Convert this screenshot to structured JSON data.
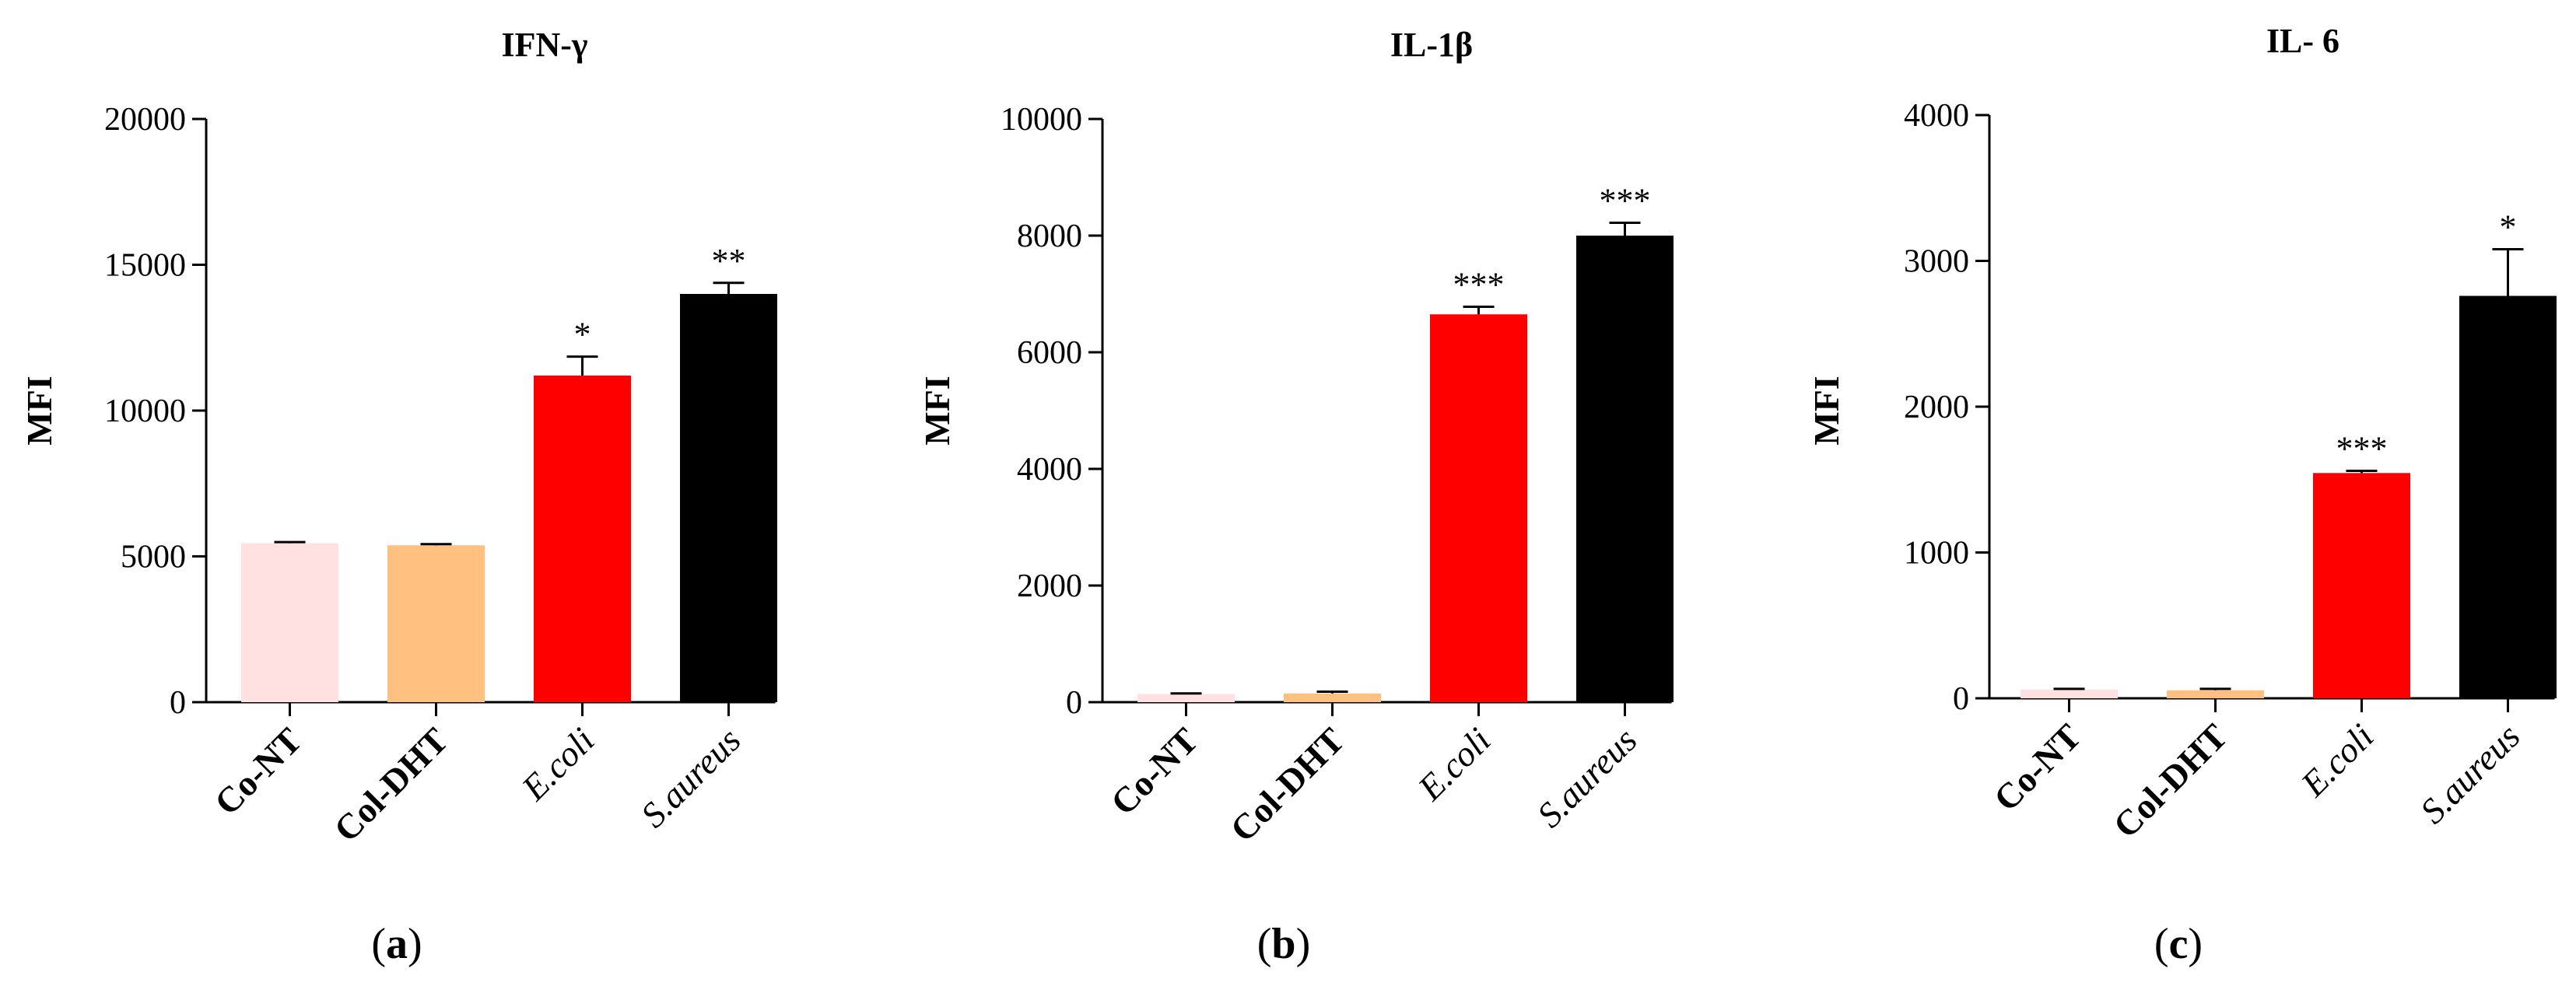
{
  "chart_data": [
    {
      "type": "bar",
      "panel_label": "a",
      "title": "IFN-γ",
      "ylabel": "MFI",
      "ylim": [
        0,
        20000
      ],
      "yticks": [
        0,
        5000,
        10000,
        15000,
        20000
      ],
      "categories": [
        "Co-NT",
        "Col-DHT",
        "E.coli",
        "S.aureus"
      ],
      "category_styles": [
        "bold",
        "bold",
        "italic",
        "italic"
      ],
      "values": [
        5450,
        5380,
        11200,
        14000
      ],
      "errors": [
        40,
        40,
        650,
        380
      ],
      "significance": [
        "",
        "",
        "*",
        "**"
      ],
      "colors": [
        "#FFE1E1",
        "#FFC080",
        "#FF0000",
        "#000000"
      ]
    },
    {
      "type": "bar",
      "panel_label": "b",
      "title": "IL-1β",
      "ylabel": "MFI",
      "ylim": [
        0,
        10000
      ],
      "yticks": [
        0,
        2000,
        4000,
        6000,
        8000,
        10000
      ],
      "categories": [
        "Co-NT",
        "Col-DHT",
        "E.coli",
        "S.aureus"
      ],
      "category_styles": [
        "bold",
        "bold",
        "italic",
        "italic"
      ],
      "values": [
        140,
        150,
        6650,
        8000
      ],
      "errors": [
        10,
        30,
        130,
        220
      ],
      "significance": [
        "",
        "",
        "***",
        "***"
      ],
      "colors": [
        "#FFE1E1",
        "#FFC080",
        "#FF0000",
        "#000000"
      ]
    },
    {
      "type": "bar",
      "panel_label": "c",
      "title": "IL- 6",
      "ylabel": "MFI",
      "ylim": [
        0,
        4000
      ],
      "yticks": [
        0,
        1000,
        2000,
        3000,
        4000
      ],
      "categories": [
        "Co-NT",
        "Col-DHT",
        "E.coli",
        "S.aureus"
      ],
      "category_styles": [
        "bold",
        "bold",
        "italic",
        "italic"
      ],
      "values": [
        60,
        55,
        1545,
        2760
      ],
      "errors": [
        5,
        10,
        15,
        320
      ],
      "significance": [
        "",
        "",
        "***",
        "*"
      ],
      "colors": [
        "#FFE1E1",
        "#FFC080",
        "#FF0000",
        "#000000"
      ]
    }
  ]
}
